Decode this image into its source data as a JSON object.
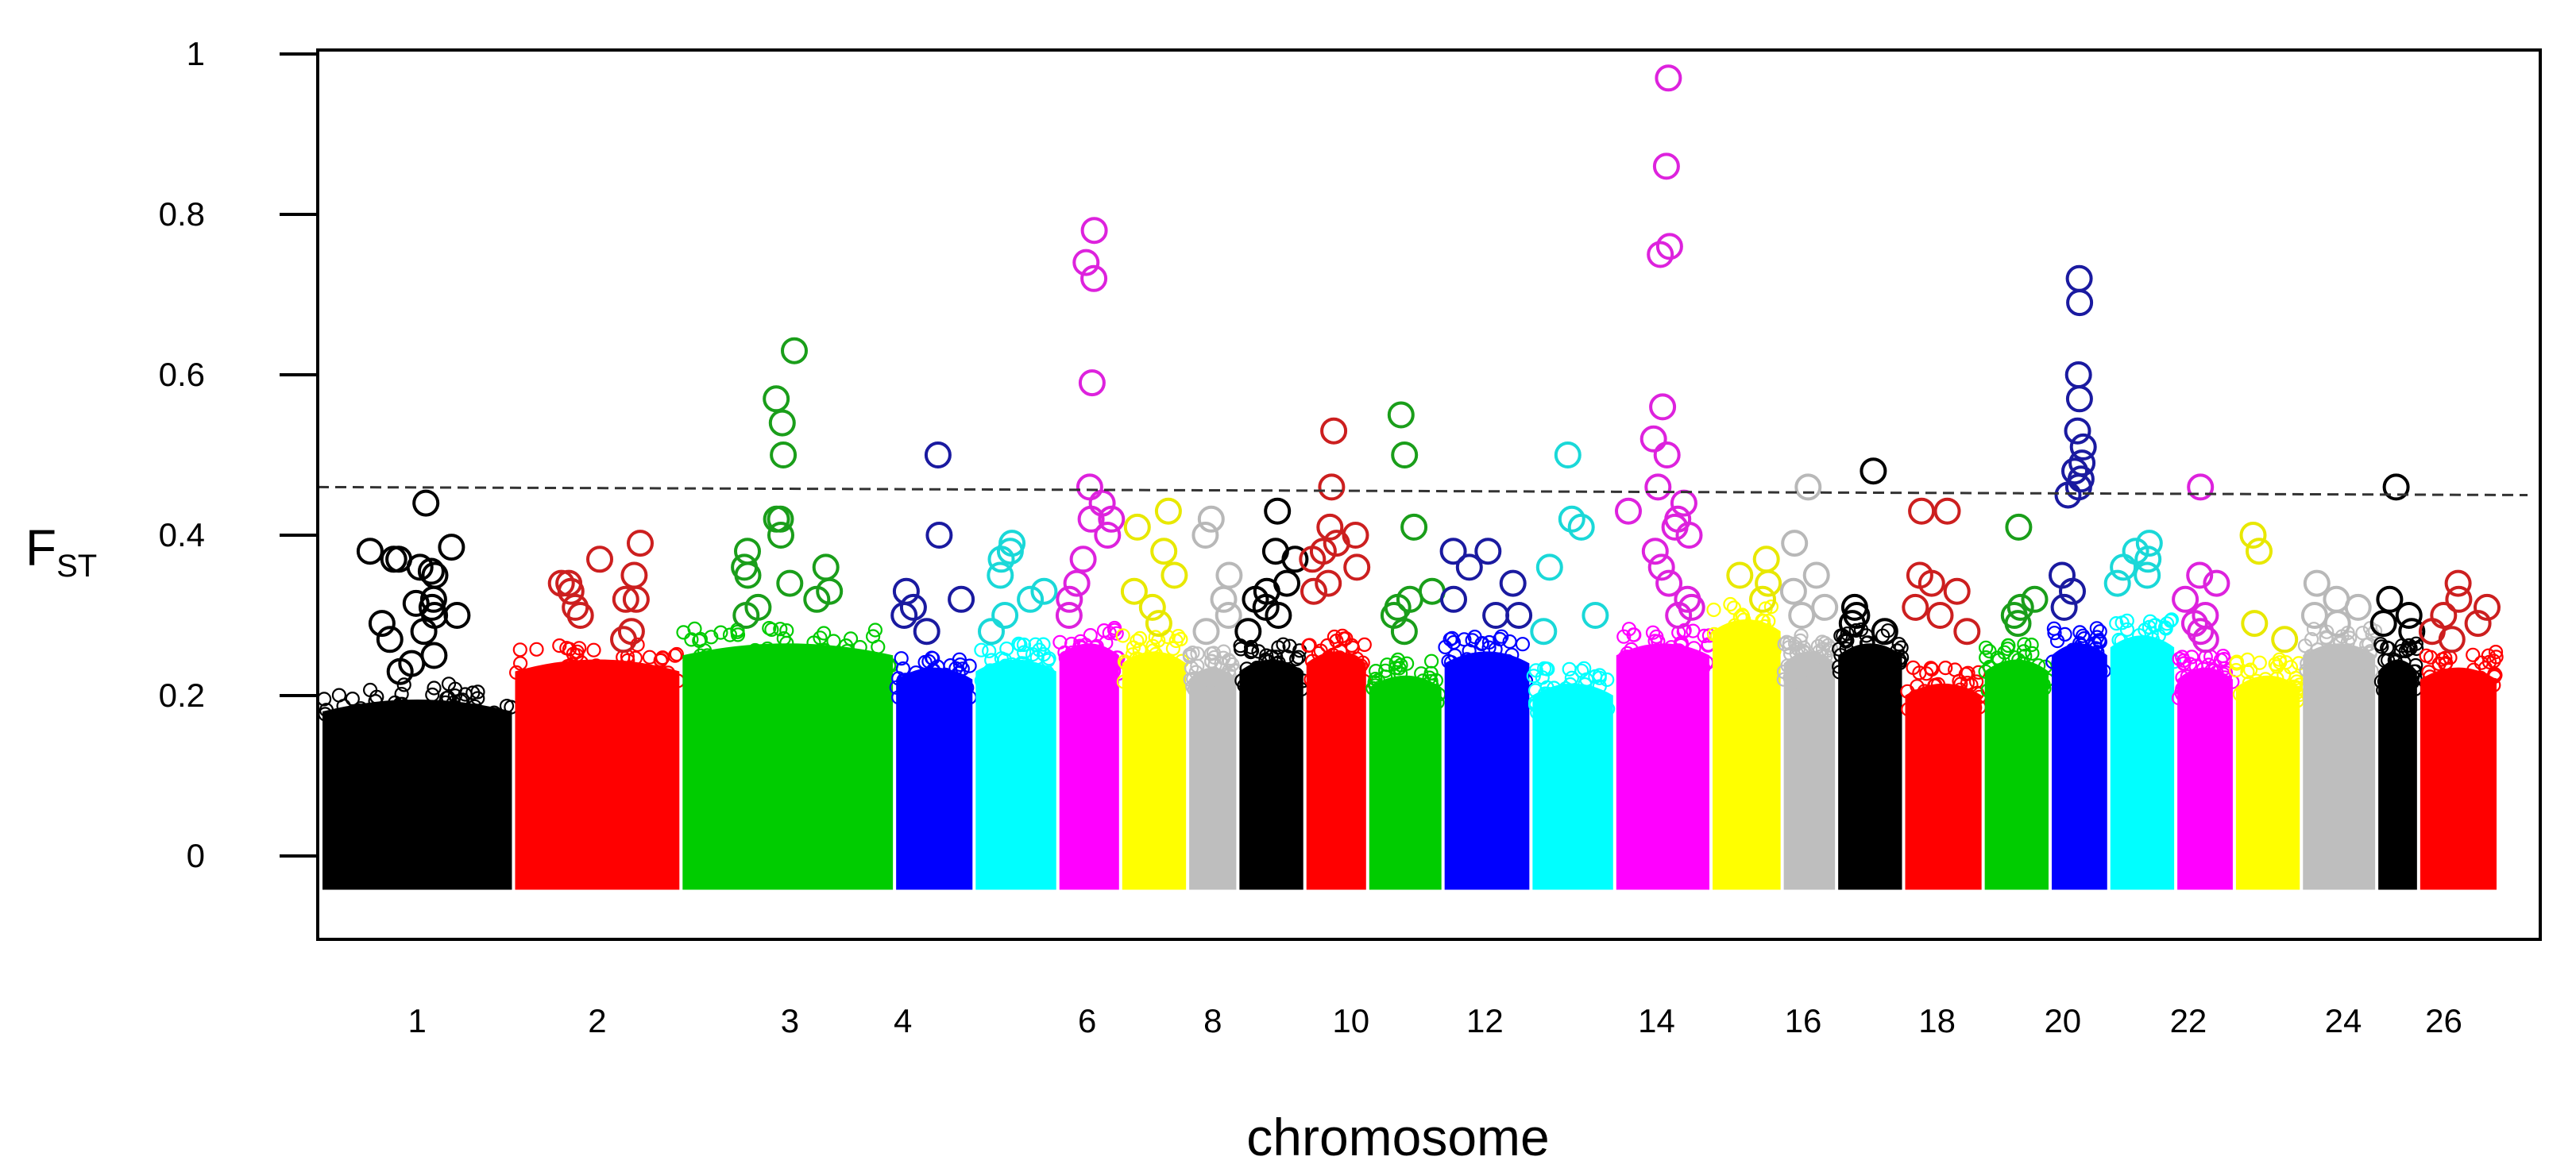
{
  "chart_data": {
    "type": "scatter",
    "subtype": "manhattan",
    "xlabel": "chromosome",
    "ylabel": "F",
    "ylabel_subscript": "ST",
    "ylim": [
      -0.05,
      1.0
    ],
    "y_ticks": [
      "0",
      "0.2",
      "0.4",
      "0.6",
      "0.8",
      "1"
    ],
    "y_tick_values": [
      0,
      0.2,
      0.4,
      0.6,
      0.8,
      1.0
    ],
    "threshold": {
      "y_start": 0.46,
      "y_end": 0.45,
      "style": "dashed"
    },
    "grid": false,
    "legend": "none",
    "tick_labels": [
      "1",
      "2",
      "3",
      "4",
      "6",
      "8",
      "10",
      "12",
      "14",
      "16",
      "18",
      "20",
      "22",
      "24",
      "26"
    ],
    "colors": [
      "#000000",
      "#ff0000",
      "#00cc00",
      "#0000ff",
      "#00ffff",
      "#ff00ff",
      "#ffff00",
      "#bebebe"
    ],
    "outline_colors": [
      "#000000",
      "#cc1f1f",
      "#1a9e1a",
      "#1a1aa0",
      "#1ad8d8",
      "#dd22dd",
      "#e8e800",
      "#b8b8b8"
    ],
    "chromosomes": [
      {
        "chr": 1,
        "x_start": 0.0,
        "x_end": 2.3,
        "bulk_max": 0.2,
        "outliers": [
          0.44,
          0.385,
          0.37,
          0.38,
          0.37,
          0.36,
          0.355,
          0.35,
          0.32,
          0.315,
          0.31,
          0.3,
          0.3,
          0.29,
          0.28,
          0.27,
          0.25,
          0.24,
          0.23
        ]
      },
      {
        "chr": 2,
        "x_start": 2.3,
        "x_end": 4.3,
        "bulk_max": 0.25,
        "outliers": [
          0.39,
          0.37,
          0.35,
          0.34,
          0.34,
          0.33,
          0.32,
          0.32,
          0.31,
          0.3,
          0.28,
          0.27
        ]
      },
      {
        "chr": 3,
        "x_start": 4.3,
        "x_end": 6.85,
        "bulk_max": 0.27,
        "outliers": [
          0.63,
          0.57,
          0.54,
          0.5,
          0.42,
          0.42,
          0.4,
          0.38,
          0.36,
          0.36,
          0.35,
          0.34,
          0.33,
          0.32,
          0.31,
          0.3
        ]
      },
      {
        "chr": 4,
        "x_start": 6.85,
        "x_end": 7.8,
        "bulk_max": 0.24,
        "outliers": [
          0.5,
          0.4,
          0.33,
          0.32,
          0.31,
          0.3,
          0.28
        ]
      },
      {
        "chr": 5,
        "x_start": 7.8,
        "x_end": 8.8,
        "bulk_max": 0.25,
        "outliers": [
          0.39,
          0.38,
          0.37,
          0.35,
          0.33,
          0.32,
          0.3,
          0.28
        ]
      },
      {
        "chr": 6,
        "x_start": 8.8,
        "x_end": 9.55,
        "bulk_max": 0.27,
        "outliers": [
          0.78,
          0.74,
          0.72,
          0.59,
          0.46,
          0.44,
          0.42,
          0.42,
          0.4,
          0.37,
          0.34,
          0.32,
          0.3
        ]
      },
      {
        "chr": 7,
        "x_start": 9.55,
        "x_end": 10.35,
        "bulk_max": 0.26,
        "outliers": [
          0.43,
          0.41,
          0.38,
          0.35,
          0.33,
          0.31,
          0.29
        ]
      },
      {
        "chr": 8,
        "x_start": 10.35,
        "x_end": 10.95,
        "bulk_max": 0.24,
        "outliers": [
          0.42,
          0.4,
          0.35,
          0.32,
          0.3,
          0.28
        ]
      },
      {
        "chr": 9,
        "x_start": 10.95,
        "x_end": 11.75,
        "bulk_max": 0.25,
        "outliers": [
          0.43,
          0.38,
          0.37,
          0.34,
          0.33,
          0.32,
          0.31,
          0.3,
          0.28
        ]
      },
      {
        "chr": 10,
        "x_start": 11.75,
        "x_end": 12.5,
        "bulk_max": 0.26,
        "outliers": [
          0.53,
          0.46,
          0.41,
          0.4,
          0.39,
          0.38,
          0.37,
          0.36,
          0.34,
          0.33
        ]
      },
      {
        "chr": 11,
        "x_start": 12.5,
        "x_end": 13.4,
        "bulk_max": 0.23,
        "outliers": [
          0.55,
          0.5,
          0.41,
          0.33,
          0.32,
          0.31,
          0.3,
          0.28
        ]
      },
      {
        "chr": 12,
        "x_start": 13.4,
        "x_end": 14.45,
        "bulk_max": 0.26,
        "outliers": [
          0.38,
          0.38,
          0.36,
          0.34,
          0.32,
          0.3,
          0.3
        ]
      },
      {
        "chr": 13,
        "x_start": 14.45,
        "x_end": 15.45,
        "bulk_max": 0.22,
        "outliers": [
          0.5,
          0.42,
          0.41,
          0.36,
          0.3,
          0.28
        ]
      },
      {
        "chr": 14,
        "x_start": 15.45,
        "x_end": 16.6,
        "bulk_max": 0.27,
        "outliers": [
          0.97,
          0.86,
          0.76,
          0.75,
          0.56,
          0.52,
          0.5,
          0.46,
          0.44,
          0.43,
          0.42,
          0.41,
          0.4,
          0.38,
          0.36,
          0.34,
          0.32,
          0.31,
          0.3
        ]
      },
      {
        "chr": 15,
        "x_start": 16.6,
        "x_end": 17.45,
        "bulk_max": 0.3,
        "outliers": [
          0.37,
          0.35,
          0.34,
          0.32
        ]
      },
      {
        "chr": 16,
        "x_start": 17.45,
        "x_end": 18.1,
        "bulk_max": 0.26,
        "outliers": [
          0.46,
          0.39,
          0.35,
          0.33,
          0.31,
          0.3
        ]
      },
      {
        "chr": 17,
        "x_start": 18.1,
        "x_end": 18.9,
        "bulk_max": 0.27,
        "outliers": [
          0.48,
          0.31,
          0.3,
          0.29,
          0.28
        ]
      },
      {
        "chr": 18,
        "x_start": 18.9,
        "x_end": 19.85,
        "bulk_max": 0.22,
        "outliers": [
          0.43,
          0.43,
          0.35,
          0.34,
          0.33,
          0.31,
          0.3,
          0.28
        ]
      },
      {
        "chr": 19,
        "x_start": 19.85,
        "x_end": 20.65,
        "bulk_max": 0.25,
        "outliers": [
          0.41,
          0.32,
          0.31,
          0.3,
          0.29
        ]
      },
      {
        "chr": 20,
        "x_start": 20.65,
        "x_end": 21.35,
        "bulk_max": 0.27,
        "outliers": [
          0.72,
          0.69,
          0.6,
          0.57,
          0.53,
          0.51,
          0.49,
          0.48,
          0.47,
          0.46,
          0.45,
          0.35,
          0.33,
          0.31
        ]
      },
      {
        "chr": 21,
        "x_start": 21.35,
        "x_end": 22.15,
        "bulk_max": 0.28,
        "outliers": [
          0.39,
          0.38,
          0.37,
          0.36,
          0.35,
          0.34
        ]
      },
      {
        "chr": 22,
        "x_start": 22.15,
        "x_end": 22.85,
        "bulk_max": 0.24,
        "outliers": [
          0.46,
          0.35,
          0.34,
          0.32,
          0.3,
          0.29,
          0.28,
          0.27
        ]
      },
      {
        "chr": 23,
        "x_start": 22.85,
        "x_end": 23.65,
        "bulk_max": 0.23,
        "outliers": [
          0.4,
          0.38,
          0.29,
          0.27
        ]
      },
      {
        "chr": 24,
        "x_start": 23.65,
        "x_end": 24.55,
        "bulk_max": 0.27,
        "outliers": [
          0.34,
          0.32,
          0.31,
          0.3,
          0.29
        ]
      },
      {
        "chr": 25,
        "x_start": 24.55,
        "x_end": 25.05,
        "bulk_max": 0.25,
        "outliers": [
          0.46,
          0.32,
          0.3,
          0.29,
          0.28
        ]
      },
      {
        "chr": 26,
        "x_start": 25.05,
        "x_end": 26.0,
        "bulk_max": 0.24,
        "outliers": [
          0.34,
          0.32,
          0.31,
          0.3,
          0.29,
          0.28,
          0.27
        ]
      }
    ],
    "label_positions": [
      {
        "label": "1",
        "x": 1.15
      },
      {
        "label": "2",
        "x": 3.3
      },
      {
        "label": "3",
        "x": 5.6
      },
      {
        "label": "4",
        "x": 6.95
      },
      {
        "label": "6",
        "x": 9.15
      },
      {
        "label": "8",
        "x": 10.65
      },
      {
        "label": "10",
        "x": 12.3
      },
      {
        "label": "12",
        "x": 13.9
      },
      {
        "label": "14",
        "x": 15.95
      },
      {
        "label": "16",
        "x": 17.7
      },
      {
        "label": "18",
        "x": 19.3
      },
      {
        "label": "20",
        "x": 20.8
      },
      {
        "label": "22",
        "x": 22.3
      },
      {
        "label": "24",
        "x": 24.15
      },
      {
        "label": "26",
        "x": 25.35
      }
    ]
  }
}
